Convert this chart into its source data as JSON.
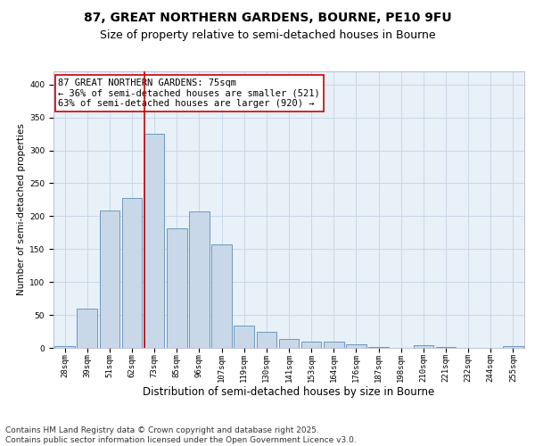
{
  "title1": "87, GREAT NORTHERN GARDENS, BOURNE, PE10 9FU",
  "title2": "Size of property relative to semi-detached houses in Bourne",
  "xlabel": "Distribution of semi-detached houses by size in Bourne",
  "ylabel": "Number of semi-detached properties",
  "categories": [
    "28sqm",
    "39sqm",
    "51sqm",
    "62sqm",
    "73sqm",
    "85sqm",
    "96sqm",
    "107sqm",
    "119sqm",
    "130sqm",
    "141sqm",
    "153sqm",
    "164sqm",
    "176sqm",
    "187sqm",
    "198sqm",
    "210sqm",
    "221sqm",
    "232sqm",
    "244sqm",
    "255sqm"
  ],
  "values": [
    3,
    60,
    209,
    228,
    325,
    181,
    207,
    157,
    34,
    25,
    13,
    10,
    9,
    5,
    2,
    0,
    4,
    1,
    0,
    0,
    3
  ],
  "bar_color": "#c8d8e8",
  "bar_edge_color": "#5b8db8",
  "vline_x_index": 4,
  "vline_color": "#cc0000",
  "annotation_text": "87 GREAT NORTHERN GARDENS: 75sqm\n← 36% of semi-detached houses are smaller (521)\n63% of semi-detached houses are larger (920) →",
  "annotation_box_color": "#ffffff",
  "annotation_box_edge": "#cc0000",
  "footnote1": "Contains HM Land Registry data © Crown copyright and database right 2025.",
  "footnote2": "Contains public sector information licensed under the Open Government Licence v3.0.",
  "ylim": [
    0,
    420
  ],
  "yticks": [
    0,
    50,
    100,
    150,
    200,
    250,
    300,
    350,
    400
  ],
  "grid_color": "#c8d8e8",
  "background_color": "#e8f0f8",
  "title1_fontsize": 10,
  "title2_fontsize": 9,
  "xlabel_fontsize": 8.5,
  "ylabel_fontsize": 7.5,
  "tick_fontsize": 6.5,
  "annotation_fontsize": 7.5,
  "footnote_fontsize": 6.5
}
